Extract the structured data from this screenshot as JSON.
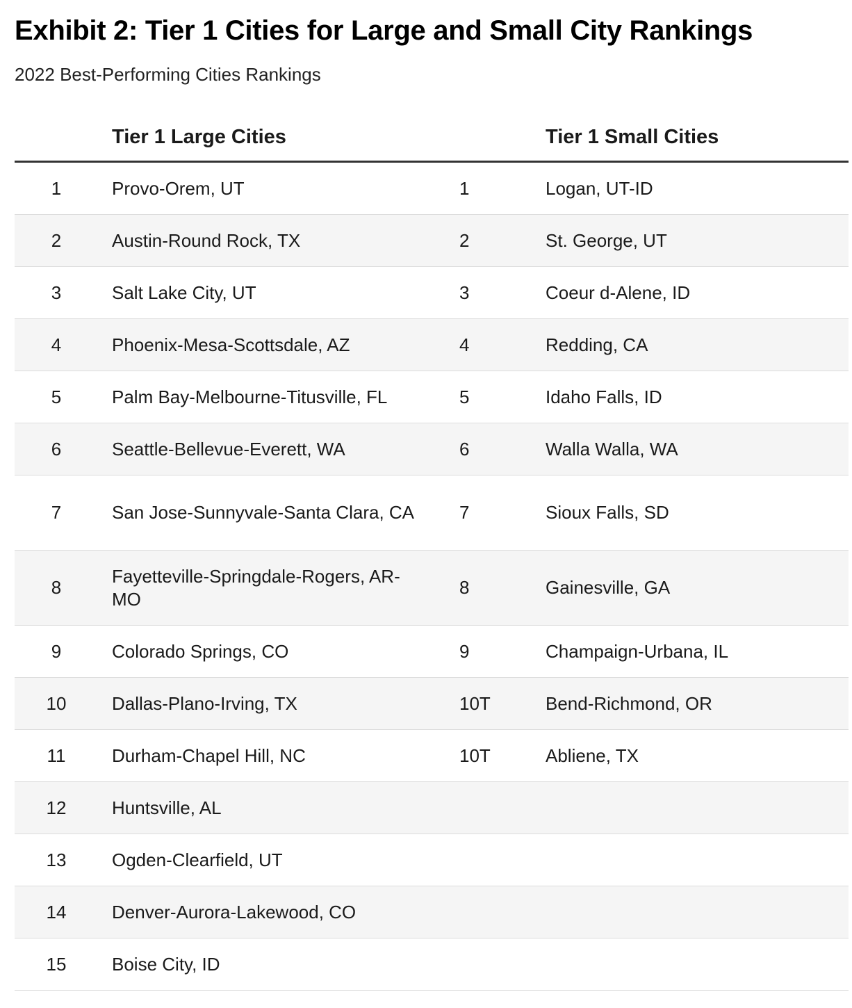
{
  "title": "Exhibit 2: Tier 1 Cities for Large and Small City Rankings",
  "subtitle": "2022 Best-Performing Cities Rankings",
  "chart_data": {
    "type": "table",
    "columns": [
      "",
      "Tier 1 Large Cities",
      "",
      "Tier 1 Small Cities"
    ],
    "rows": [
      [
        "1",
        "Provo-Orem, UT",
        "1",
        "Logan, UT-ID"
      ],
      [
        "2",
        "Austin-Round Rock, TX",
        "2",
        "St. George, UT"
      ],
      [
        "3",
        "Salt Lake City, UT",
        "3",
        "Coeur d-Alene, ID"
      ],
      [
        "4",
        "Phoenix-Mesa-Scottsdale, AZ",
        "4",
        "Redding, CA"
      ],
      [
        "5",
        "Palm Bay-Melbourne-Titusville, FL",
        "5",
        "Idaho Falls, ID"
      ],
      [
        "6",
        "Seattle-Bellevue-Everett, WA",
        "6",
        "Walla Walla, WA"
      ],
      [
        "7",
        "San Jose-Sunnyvale-Santa Clara, CA",
        "7",
        "Sioux Falls, SD"
      ],
      [
        "8",
        "Fayetteville-Springdale-Rogers, AR-MO",
        "8",
        "Gainesville, GA"
      ],
      [
        "9",
        "Colorado Springs, CO",
        "9",
        "Champaign-Urbana, IL"
      ],
      [
        "10",
        "Dallas-Plano-Irving, TX",
        "10T",
        "Bend-Richmond, OR"
      ],
      [
        "11",
        "Durham-Chapel Hill, NC",
        "10T",
        "Abliene, TX"
      ],
      [
        "12",
        "Huntsville, AL",
        "",
        ""
      ],
      [
        "13",
        "Ogden-Clearfield, UT",
        "",
        ""
      ],
      [
        "14",
        "Denver-Aurora-Lakewood, CO",
        "",
        ""
      ],
      [
        "15",
        "Boise City, ID",
        "",
        ""
      ]
    ],
    "row_stripe_color": "#f5f5f5",
    "header_rule_color": "#333333"
  }
}
